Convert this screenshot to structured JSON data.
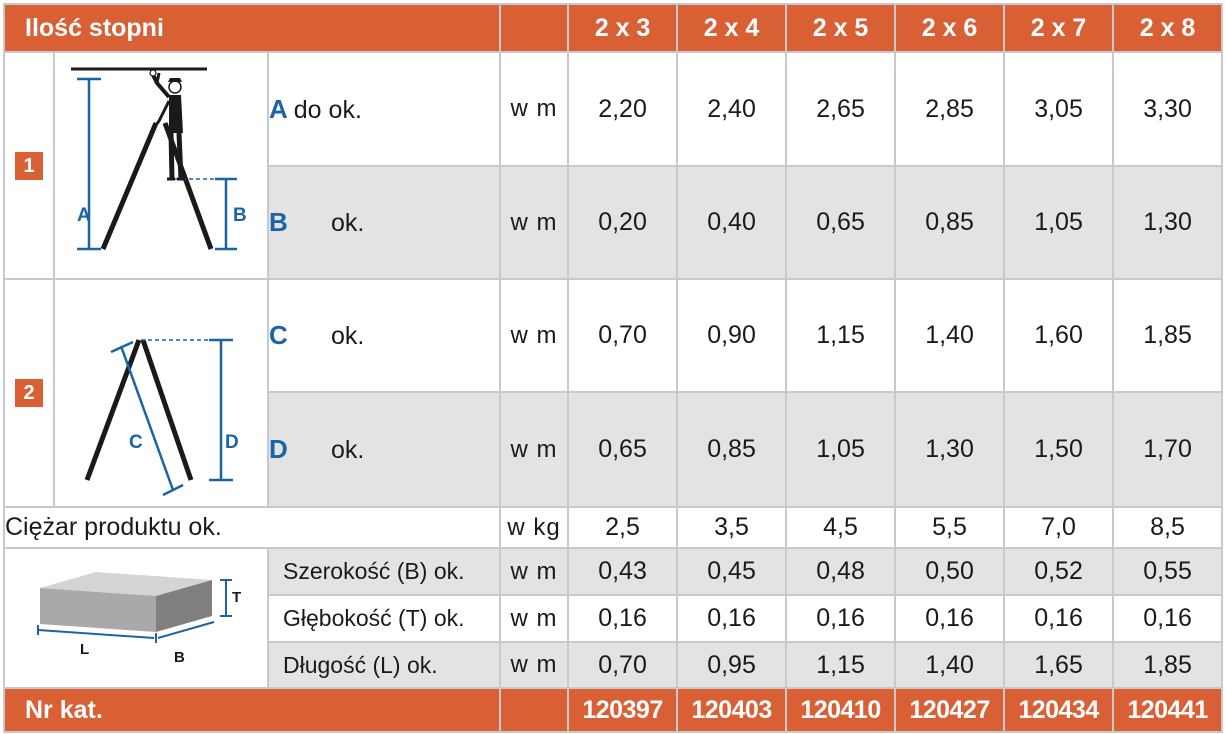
{
  "header": {
    "title": "Ilość stopni",
    "columns": [
      "2 x 3",
      "2 x 4",
      "2 x 5",
      "2 x 6",
      "2 x 7",
      "2 x 8"
    ]
  },
  "section1": {
    "badge": "1",
    "figure_labels": {
      "a": "A",
      "b": "B"
    },
    "rows": [
      {
        "letter": "A",
        "text": "do ok.",
        "unit": "w m",
        "values": [
          "2,20",
          "2,40",
          "2,65",
          "2,85",
          "3,05",
          "3,30"
        ]
      },
      {
        "letter": "B",
        "text": "ok.",
        "unit": "w m",
        "values": [
          "0,20",
          "0,40",
          "0,65",
          "0,85",
          "1,05",
          "1,30"
        ]
      }
    ]
  },
  "section2": {
    "badge": "2",
    "figure_labels": {
      "c": "C",
      "d": "D"
    },
    "rows": [
      {
        "letter": "C",
        "text": "ok.",
        "unit": "w m",
        "values": [
          "0,70",
          "0,90",
          "1,15",
          "1,40",
          "1,60",
          "1,85"
        ]
      },
      {
        "letter": "D",
        "text": "ok.",
        "unit": "w m",
        "values": [
          "0,65",
          "0,85",
          "1,05",
          "1,30",
          "1,50",
          "1,70"
        ]
      }
    ]
  },
  "weight": {
    "label": "Ciężar produktu ok.",
    "unit": "w kg",
    "values": [
      "2,5",
      "3,5",
      "4,5",
      "5,5",
      "7,0",
      "8,5"
    ]
  },
  "package": {
    "figure_labels": {
      "t": "T",
      "l": "L",
      "b": "B"
    },
    "rows": [
      {
        "label": "Szerokość (B) ok.",
        "unit": "w m",
        "values": [
          "0,43",
          "0,45",
          "0,48",
          "0,50",
          "0,52",
          "0,55"
        ]
      },
      {
        "label": "Głębokość (T) ok.",
        "unit": "w m",
        "values": [
          "0,16",
          "0,16",
          "0,16",
          "0,16",
          "0,16",
          "0,16"
        ]
      },
      {
        "label": "Długość (L) ok.",
        "unit": "w m",
        "values": [
          "0,70",
          "0,95",
          "1,15",
          "1,40",
          "1,65",
          "1,85"
        ]
      }
    ]
  },
  "footer": {
    "label": "Nr kat.",
    "values": [
      "120397",
      "120403",
      "120410",
      "120427",
      "120434",
      "120441"
    ]
  },
  "colors": {
    "accent": "#d95f35",
    "blue": "#1a64a6",
    "row_gray": "#e3e3e3",
    "grid": "#c9c9c9"
  }
}
